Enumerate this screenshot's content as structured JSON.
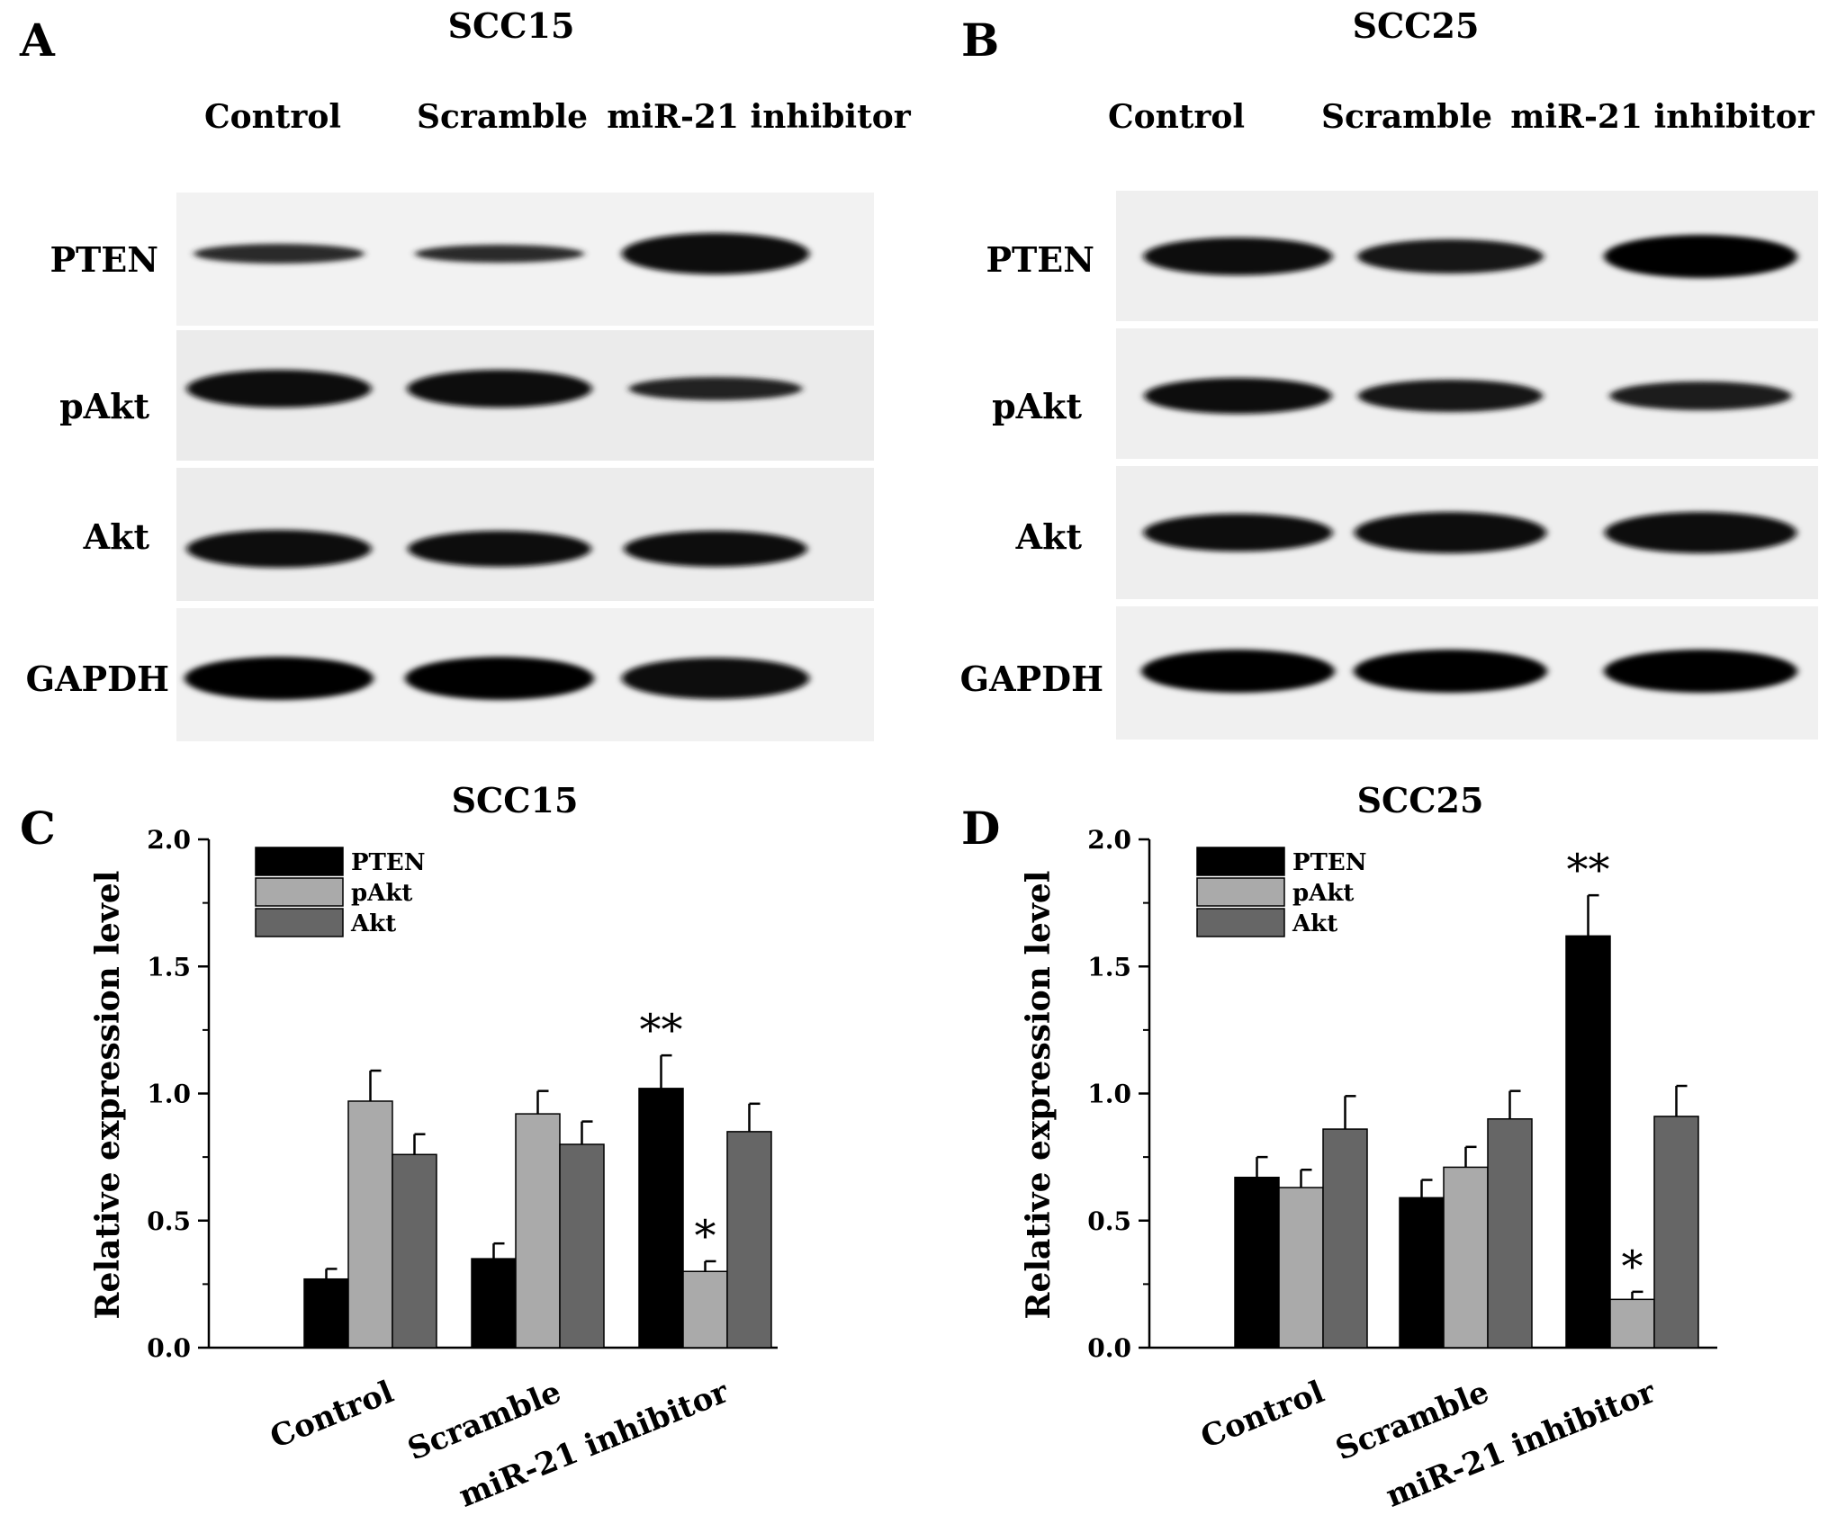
{
  "blots": [
    {
      "panel_letter": "A",
      "title": "SCC15",
      "lanes": [
        "Control",
        "Scramble",
        "miR-21 inhibitor"
      ],
      "rows": [
        {
          "label": "PTEN",
          "bands": [
            0.35,
            0.3,
            0.95
          ]
        },
        {
          "label": "pAkt",
          "bands": [
            0.85,
            0.85,
            0.45
          ]
        },
        {
          "label": "Akt",
          "bands": [
            0.85,
            0.8,
            0.8
          ]
        },
        {
          "label": "GAPDH",
          "bands": [
            1.0,
            1.0,
            0.95
          ]
        }
      ]
    },
    {
      "panel_letter": "B",
      "title": "SCC25",
      "lanes": [
        "Control",
        "Scramble",
        "miR-21 inhibitor"
      ],
      "rows": [
        {
          "label": "PTEN",
          "bands": [
            0.85,
            0.75,
            1.0
          ]
        },
        {
          "label": "pAkt",
          "bands": [
            0.8,
            0.7,
            0.6
          ]
        },
        {
          "label": "Akt",
          "bands": [
            0.85,
            0.95,
            0.95
          ]
        },
        {
          "label": "GAPDH",
          "bands": [
            1.0,
            1.0,
            1.0
          ]
        }
      ]
    }
  ],
  "chart_data": [
    {
      "type": "bar",
      "panel_letter": "C",
      "title": "SCC15",
      "ylabel": "Relative expression level",
      "ylim": [
        0,
        2.0
      ],
      "yticks": [
        "0.0",
        "0.5",
        "1.0",
        "1.5",
        "2.0"
      ],
      "categories": [
        "Control",
        "Scramble",
        "miR-21 inhibitor"
      ],
      "series": [
        {
          "name": "PTEN",
          "color": "#000000",
          "values": [
            0.27,
            0.35,
            1.02
          ],
          "errors": [
            0.04,
            0.06,
            0.13
          ],
          "annotations": [
            "",
            "",
            "**"
          ]
        },
        {
          "name": "pAkt",
          "color": "#aaaaaa",
          "values": [
            0.97,
            0.92,
            0.3
          ],
          "errors": [
            0.12,
            0.09,
            0.04
          ],
          "annotations": [
            "",
            "",
            "*"
          ]
        },
        {
          "name": "Akt",
          "color": "#666666",
          "values": [
            0.76,
            0.8,
            0.85
          ],
          "errors": [
            0.08,
            0.09,
            0.11
          ],
          "annotations": [
            "",
            "",
            ""
          ]
        }
      ],
      "legend": "top-left"
    },
    {
      "type": "bar",
      "panel_letter": "D",
      "title": "SCC25",
      "ylabel": "Relative expression level",
      "ylim": [
        0,
        2.0
      ],
      "yticks": [
        "0.0",
        "0.5",
        "1.0",
        "1.5",
        "2.0"
      ],
      "categories": [
        "Control",
        "Scramble",
        "miR-21 inhibitor"
      ],
      "series": [
        {
          "name": "PTEN",
          "color": "#000000",
          "values": [
            0.67,
            0.59,
            1.62
          ],
          "errors": [
            0.08,
            0.07,
            0.16
          ],
          "annotations": [
            "",
            "",
            "**"
          ]
        },
        {
          "name": "pAkt",
          "color": "#aaaaaa",
          "values": [
            0.63,
            0.71,
            0.19
          ],
          "errors": [
            0.07,
            0.08,
            0.03
          ],
          "annotations": [
            "",
            "",
            "*"
          ]
        },
        {
          "name": "Akt",
          "color": "#666666",
          "values": [
            0.86,
            0.9,
            0.91
          ],
          "errors": [
            0.13,
            0.11,
            0.12
          ],
          "annotations": [
            "",
            "",
            ""
          ]
        }
      ],
      "legend": "top-left"
    }
  ]
}
